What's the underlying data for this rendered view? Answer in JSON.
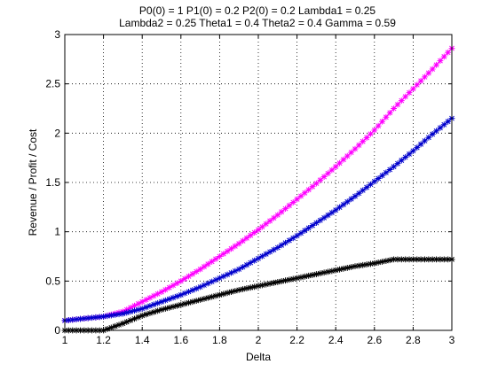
{
  "chart_data": {
    "type": "line",
    "title_lines": [
      "P0(0) = 1 P1(0) = 0.2 P2(0) = 0.2 Lambda1 = 0.25",
      "Lambda2 = 0.25 Theta1 = 0.4 Theta2 = 0.4 Gamma = 0.59"
    ],
    "xlabel": "Delta",
    "ylabel": "Revenue / Profit / Cost",
    "xlim": [
      1,
      3
    ],
    "ylim": [
      0,
      3
    ],
    "xticks": [
      "1",
      "1.2",
      "1.4",
      "1.6",
      "1.8",
      "2",
      "2.2",
      "2.4",
      "2.6",
      "2.8",
      "3"
    ],
    "yticks": [
      "0",
      "0.5",
      "1",
      "1.5",
      "2",
      "2.5",
      "3"
    ],
    "grid": true,
    "legend": "none",
    "x": [
      1.0,
      1.1,
      1.2,
      1.3,
      1.4,
      1.5,
      1.6,
      1.7,
      1.8,
      1.9,
      2.0,
      2.1,
      2.2,
      2.3,
      2.4,
      2.5,
      2.6,
      2.7,
      2.8,
      2.9,
      3.0
    ],
    "series": [
      {
        "color": "#ff00ff",
        "marker": "*",
        "values": [
          0.1,
          0.12,
          0.14,
          0.19,
          0.29,
          0.39,
          0.5,
          0.62,
          0.75,
          0.88,
          1.02,
          1.17,
          1.33,
          1.49,
          1.66,
          1.84,
          2.03,
          2.25,
          2.45,
          2.65,
          2.86
        ]
      },
      {
        "color": "#0000cc",
        "marker": "*",
        "values": [
          0.1,
          0.12,
          0.14,
          0.17,
          0.22,
          0.29,
          0.36,
          0.44,
          0.53,
          0.62,
          0.73,
          0.84,
          0.96,
          1.09,
          1.22,
          1.36,
          1.51,
          1.66,
          1.82,
          1.99,
          2.15
        ]
      },
      {
        "color": "#000000",
        "marker": "*",
        "values": [
          0.0,
          0.0,
          0.0,
          0.07,
          0.15,
          0.21,
          0.26,
          0.31,
          0.36,
          0.41,
          0.45,
          0.49,
          0.53,
          0.57,
          0.61,
          0.65,
          0.68,
          0.72,
          0.72,
          0.72,
          0.72
        ]
      }
    ]
  }
}
